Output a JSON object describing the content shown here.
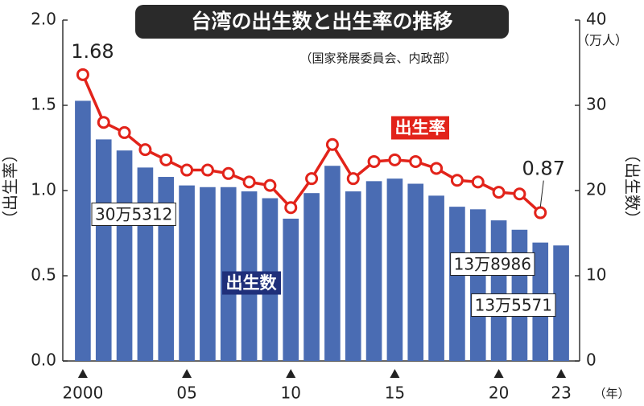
{
  "chart_data": {
    "type": "combo",
    "title": "台湾の出生数と出生率の推移",
    "subtitle": "（国家発展委員会、内政部）",
    "categories": [
      "2000",
      null,
      null,
      null,
      null,
      "05",
      null,
      null,
      null,
      null,
      "10",
      null,
      null,
      null,
      null,
      "15",
      null,
      null,
      null,
      null,
      "20",
      null,
      null,
      "23"
    ],
    "x_unit": "（年）",
    "y_label": "（出生率）",
    "y2_label": "（出生数）",
    "y2_unit": "（万人）",
    "ylim": [
      0,
      2
    ],
    "yticks": [
      {
        "value": 0,
        "label": "0.0"
      },
      0.5,
      {
        "value": 1,
        "label": "1.0"
      },
      1.5,
      {
        "value": 2,
        "label": "2.0"
      }
    ],
    "y2lim": [
      0,
      40
    ],
    "y2ticks": [
      0,
      10,
      20,
      30,
      40
    ],
    "series": [
      {
        "name": "出生数",
        "type": "bar",
        "axis": "y2",
        "color": "#4a6cb3",
        "values": [
          30.5312,
          26.0,
          24.7,
          22.7,
          21.6,
          20.6,
          20.4,
          20.4,
          19.9,
          19.1,
          16.7,
          19.7,
          22.9,
          19.9,
          21.1,
          21.4,
          20.8,
          19.4,
          18.1,
          17.8,
          16.5,
          15.4,
          13.8986,
          13.5571
        ],
        "value_labels": [
          "30万5312",
          null,
          null,
          null,
          null,
          null,
          null,
          null,
          null,
          null,
          null,
          null,
          null,
          null,
          null,
          null,
          null,
          null,
          null,
          null,
          null,
          null,
          "13万8986",
          "13万5571"
        ]
      },
      {
        "name": "出生率",
        "type": "line",
        "axis": "y",
        "color": "#e2231a",
        "values": [
          1.68,
          1.4,
          1.34,
          1.24,
          1.18,
          1.12,
          1.12,
          1.1,
          1.05,
          1.03,
          0.9,
          1.07,
          1.27,
          1.07,
          1.17,
          1.18,
          1.17,
          1.13,
          1.06,
          1.05,
          0.99,
          0.98,
          0.87,
          null
        ],
        "value_labels": [
          "1.68",
          null,
          null,
          null,
          null,
          null,
          null,
          null,
          null,
          null,
          null,
          null,
          null,
          null,
          null,
          null,
          null,
          null,
          null,
          null,
          null,
          null,
          "0.87",
          null
        ]
      }
    ]
  }
}
